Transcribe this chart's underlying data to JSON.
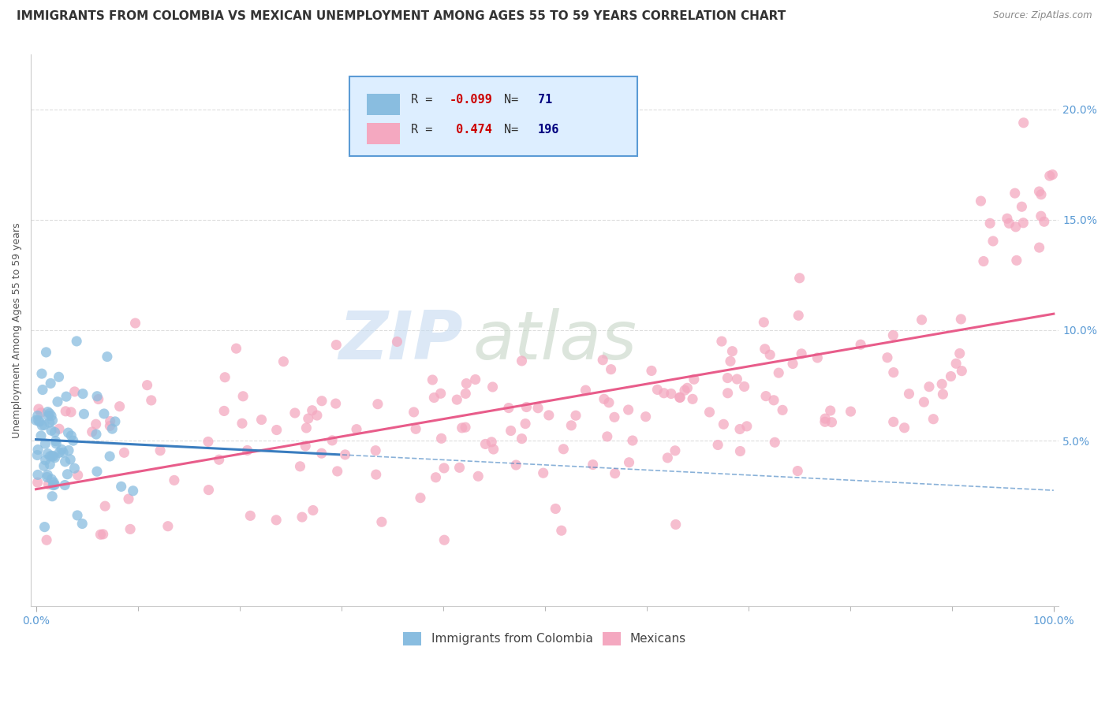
{
  "title": "IMMIGRANTS FROM COLOMBIA VS MEXICAN UNEMPLOYMENT AMONG AGES 55 TO 59 YEARS CORRELATION CHART",
  "source": "Source: ZipAtlas.com",
  "ylabel": "Unemployment Among Ages 55 to 59 years",
  "xlim": [
    -0.005,
    1.005
  ],
  "ylim": [
    -0.025,
    0.225
  ],
  "xtick_positions": [
    0.0,
    1.0
  ],
  "xtick_labels": [
    "0.0%",
    "100.0%"
  ],
  "ytick_positions": [
    0.05,
    0.1,
    0.15,
    0.2
  ],
  "ytick_labels": [
    "5.0%",
    "10.0%",
    "15.0%",
    "20.0%"
  ],
  "grid_yticks": [
    0.05,
    0.1,
    0.15,
    0.2
  ],
  "colombia_R": -0.099,
  "colombia_N": 71,
  "mexican_R": 0.474,
  "mexican_N": 196,
  "colombia_color": "#89bde0",
  "mexico_color": "#f4a8c0",
  "colombia_line_color": "#3a7dbf",
  "mexico_line_color": "#e85c8a",
  "watermark_zip": "ZIP",
  "watermark_atlas": "atlas",
  "watermark_color_zip": "#c8dff0",
  "watermark_color_atlas": "#c8d8c8",
  "background_color": "#ffffff",
  "grid_color": "#dddddd",
  "tick_color": "#5b9bd5",
  "title_fontsize": 11,
  "axis_label_fontsize": 9,
  "tick_fontsize": 10,
  "legend_fontsize": 11,
  "legend_box_facecolor": "#ddeeff",
  "legend_box_edgecolor": "#5b9bd5",
  "legend_R_color": "#cc0000",
  "legend_N_color": "#000080"
}
